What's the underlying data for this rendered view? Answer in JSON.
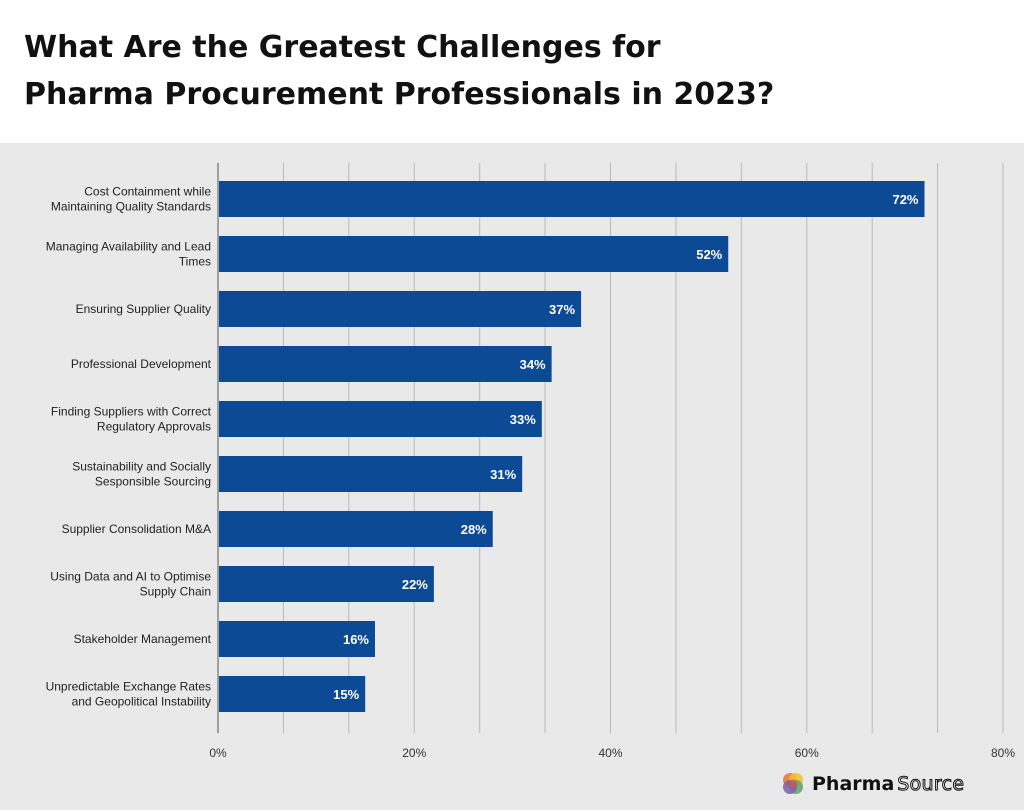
{
  "title": {
    "line1": "What Are the Greatest Challenges for",
    "line2": "Pharma Procurement Professionals in 2023?"
  },
  "brand": {
    "word_a": "Pharma",
    "word_b": "Source",
    "bar_color": "#0d4a96",
    "panel_color": "#e9e9e9",
    "logo_colors": [
      "#e8743b",
      "#f2c12e",
      "#5aa469",
      "#7b5ea7",
      "#d9534f"
    ]
  },
  "chart_data": {
    "type": "bar",
    "orientation": "horizontal",
    "categories": [
      [
        "Cost Containment while",
        "Maintaining Quality Standards"
      ],
      [
        "Managing Availability and Lead",
        "Times"
      ],
      [
        "Ensuring Supplier Quality"
      ],
      [
        "Professional Development"
      ],
      [
        "Finding Suppliers with Correct",
        "Regulatory Approvals"
      ],
      [
        "Sustainability and Socially",
        "Sesponsible Sourcing"
      ],
      [
        "Supplier Consolidation M&A"
      ],
      [
        "Using Data and AI to Optimise",
        "Supply Chain"
      ],
      [
        "Stakeholder Management"
      ],
      [
        "Unpredictable Exchange Rates",
        "and Geopolitical Instability"
      ]
    ],
    "values": [
      72,
      52,
      37,
      34,
      33,
      31,
      28,
      22,
      16,
      15
    ],
    "value_labels": [
      "72%",
      "52%",
      "37%",
      "34%",
      "33%",
      "31%",
      "28%",
      "22%",
      "16%",
      "15%"
    ],
    "xlim": [
      0,
      80
    ],
    "x_ticks": [
      0,
      20,
      40,
      60,
      80
    ],
    "x_tick_labels": [
      "0%",
      "20%",
      "40%",
      "60%",
      "80%"
    ],
    "grid_values": [
      6.67,
      13.33,
      20,
      26.67,
      33.33,
      40,
      46.67,
      53.33,
      60,
      66.67,
      73.33,
      80
    ],
    "grid": true,
    "legend": "none"
  }
}
